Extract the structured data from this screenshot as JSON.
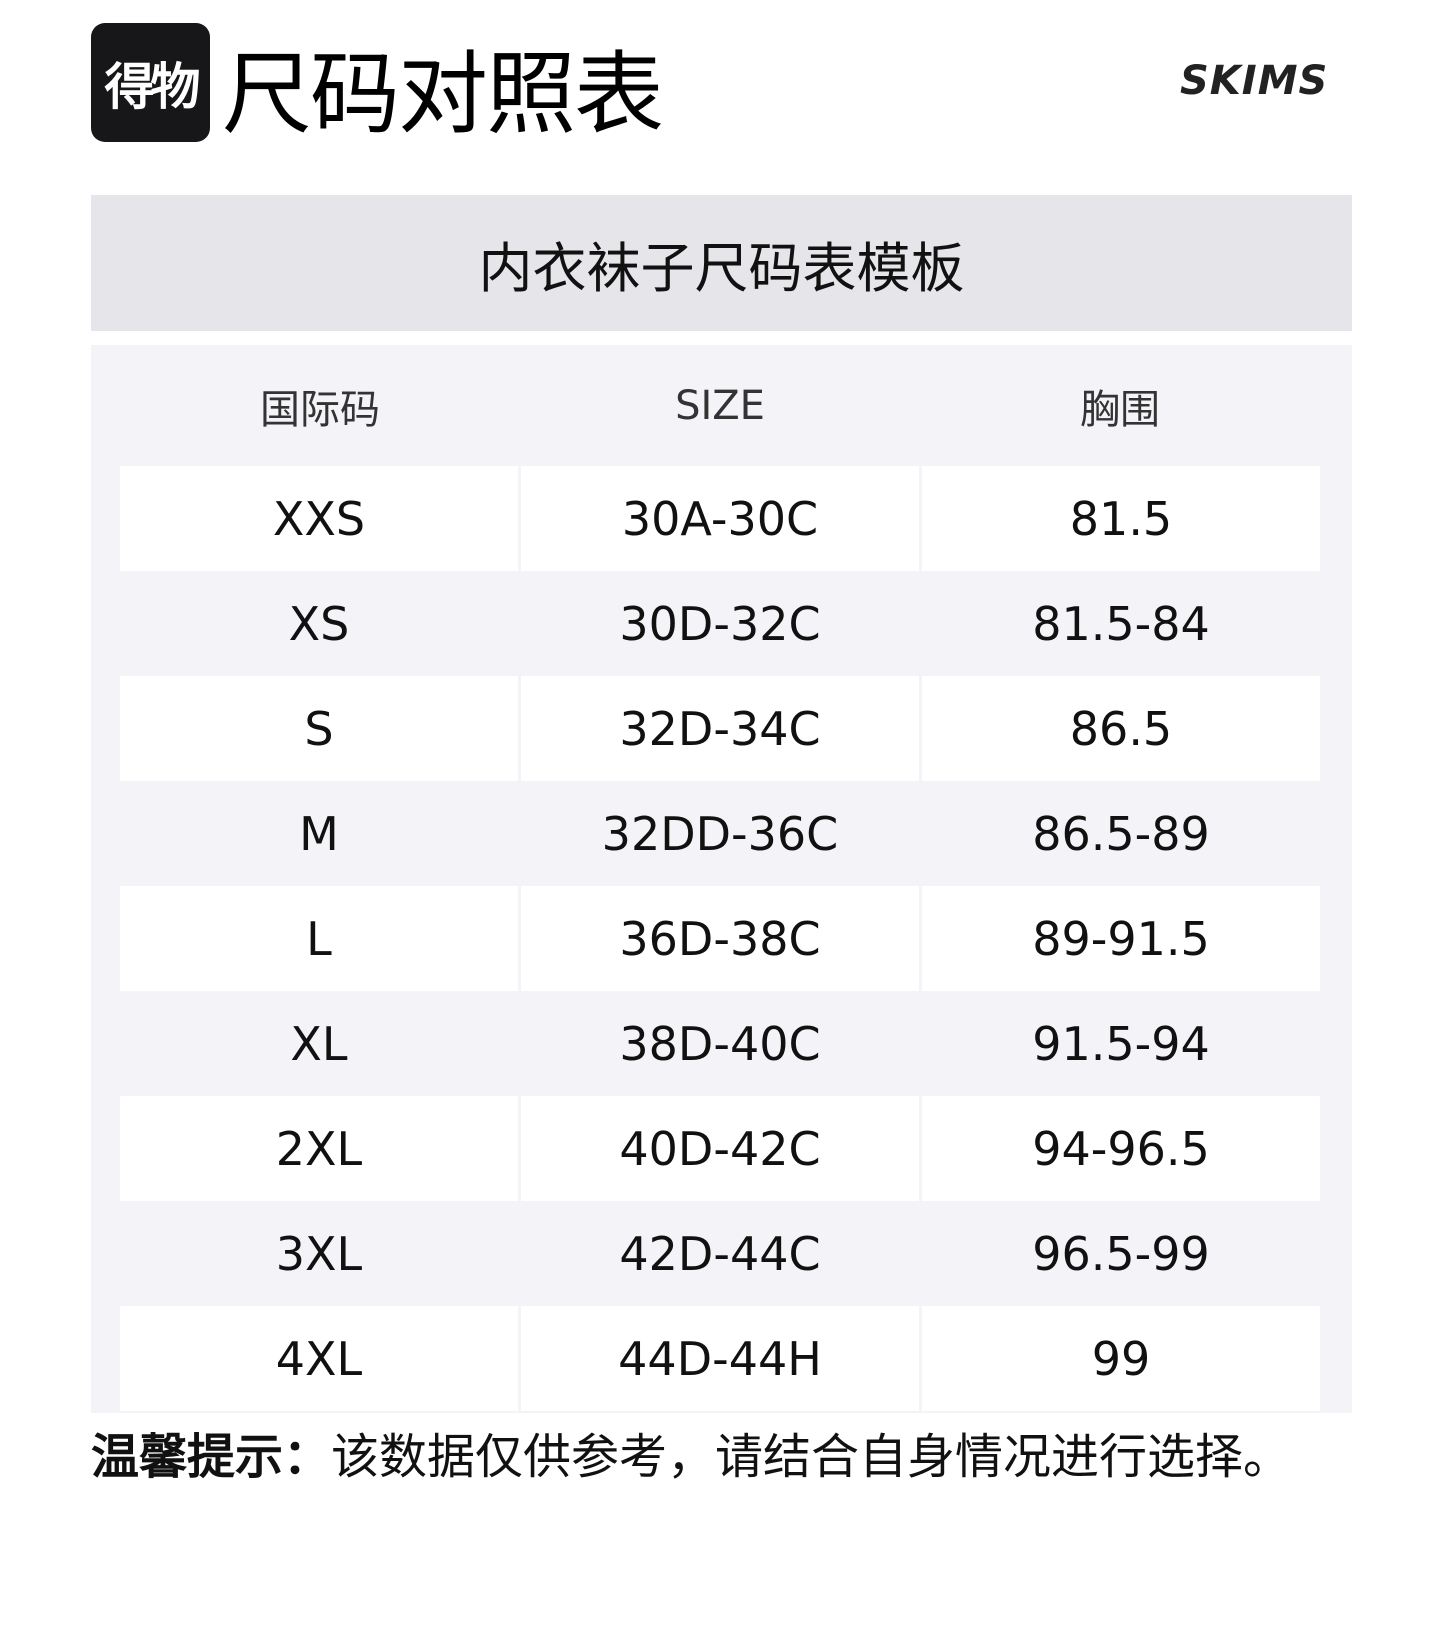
{
  "header": {
    "logo_text": "得物",
    "title": "尺码对照表",
    "brand": "SKIMS"
  },
  "table": {
    "caption": "内衣袜子尺码表模板",
    "columns": [
      "国际码",
      "SIZE",
      "胸围"
    ],
    "rows": [
      [
        "XXS",
        "30A-30C",
        "81.5"
      ],
      [
        "XS",
        "30D-32C",
        "81.5-84"
      ],
      [
        "S",
        "32D-34C",
        "86.5"
      ],
      [
        "M",
        "32DD-36C",
        "86.5-89"
      ],
      [
        "L",
        "36D-38C",
        "89-91.5"
      ],
      [
        "XL",
        "38D-40C",
        "91.5-94"
      ],
      [
        "2XL",
        "40D-42C",
        "94-96.5"
      ],
      [
        "3XL",
        "42D-44C",
        "96.5-99"
      ],
      [
        "4XL",
        "44D-44H",
        "99"
      ]
    ]
  },
  "footer": {
    "label": "温馨提示：",
    "text": "该数据仅供参考，请结合自身情况进行选择。"
  },
  "colors": {
    "band": "#e5e5ea",
    "panel": "#f4f4f8",
    "logo_bg": "#17171a"
  }
}
